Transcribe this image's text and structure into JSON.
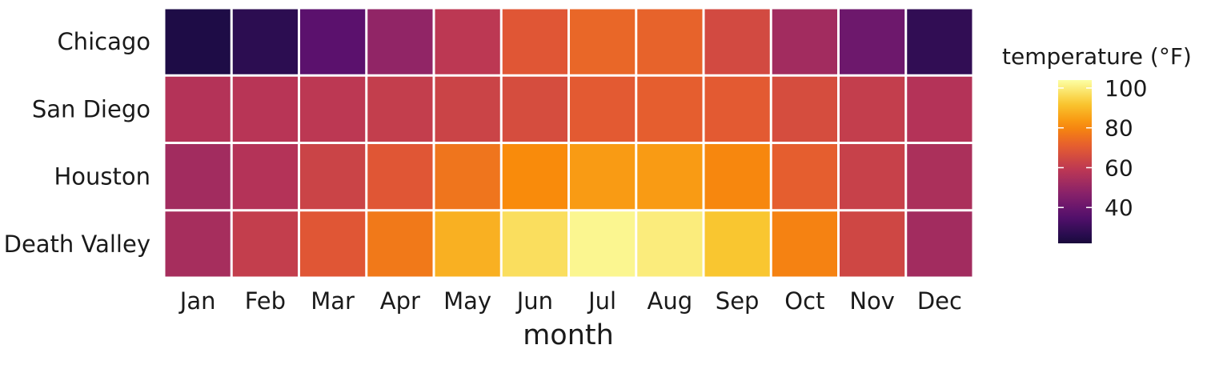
{
  "chart_data": {
    "type": "heatmap",
    "x": [
      "Jan",
      "Feb",
      "Mar",
      "Apr",
      "May",
      "Jun",
      "Jul",
      "Aug",
      "Sep",
      "Oct",
      "Nov",
      "Dec"
    ],
    "y": [
      "Chicago",
      "San Diego",
      "Houston",
      "Death Valley"
    ],
    "values": [
      [
        24,
        27,
        37,
        49,
        59,
        69,
        73,
        72,
        65,
        53,
        41,
        28
      ],
      [
        57,
        58,
        59,
        61,
        63,
        66,
        70,
        71,
        70,
        66,
        61,
        57
      ],
      [
        53,
        57,
        63,
        69,
        76,
        81,
        84,
        84,
        80,
        71,
        62,
        55
      ],
      [
        54,
        61,
        69,
        77,
        88,
        97,
        102,
        100,
        92,
        79,
        64,
        53
      ]
    ],
    "xlabel": "month",
    "ylabel": "",
    "legend": {
      "title": "temperature (°F)",
      "ticks": [
        40,
        60,
        80,
        100
      ],
      "range": [
        22,
        104
      ],
      "position": "right"
    },
    "colormap": "inferno",
    "grid": false
  }
}
